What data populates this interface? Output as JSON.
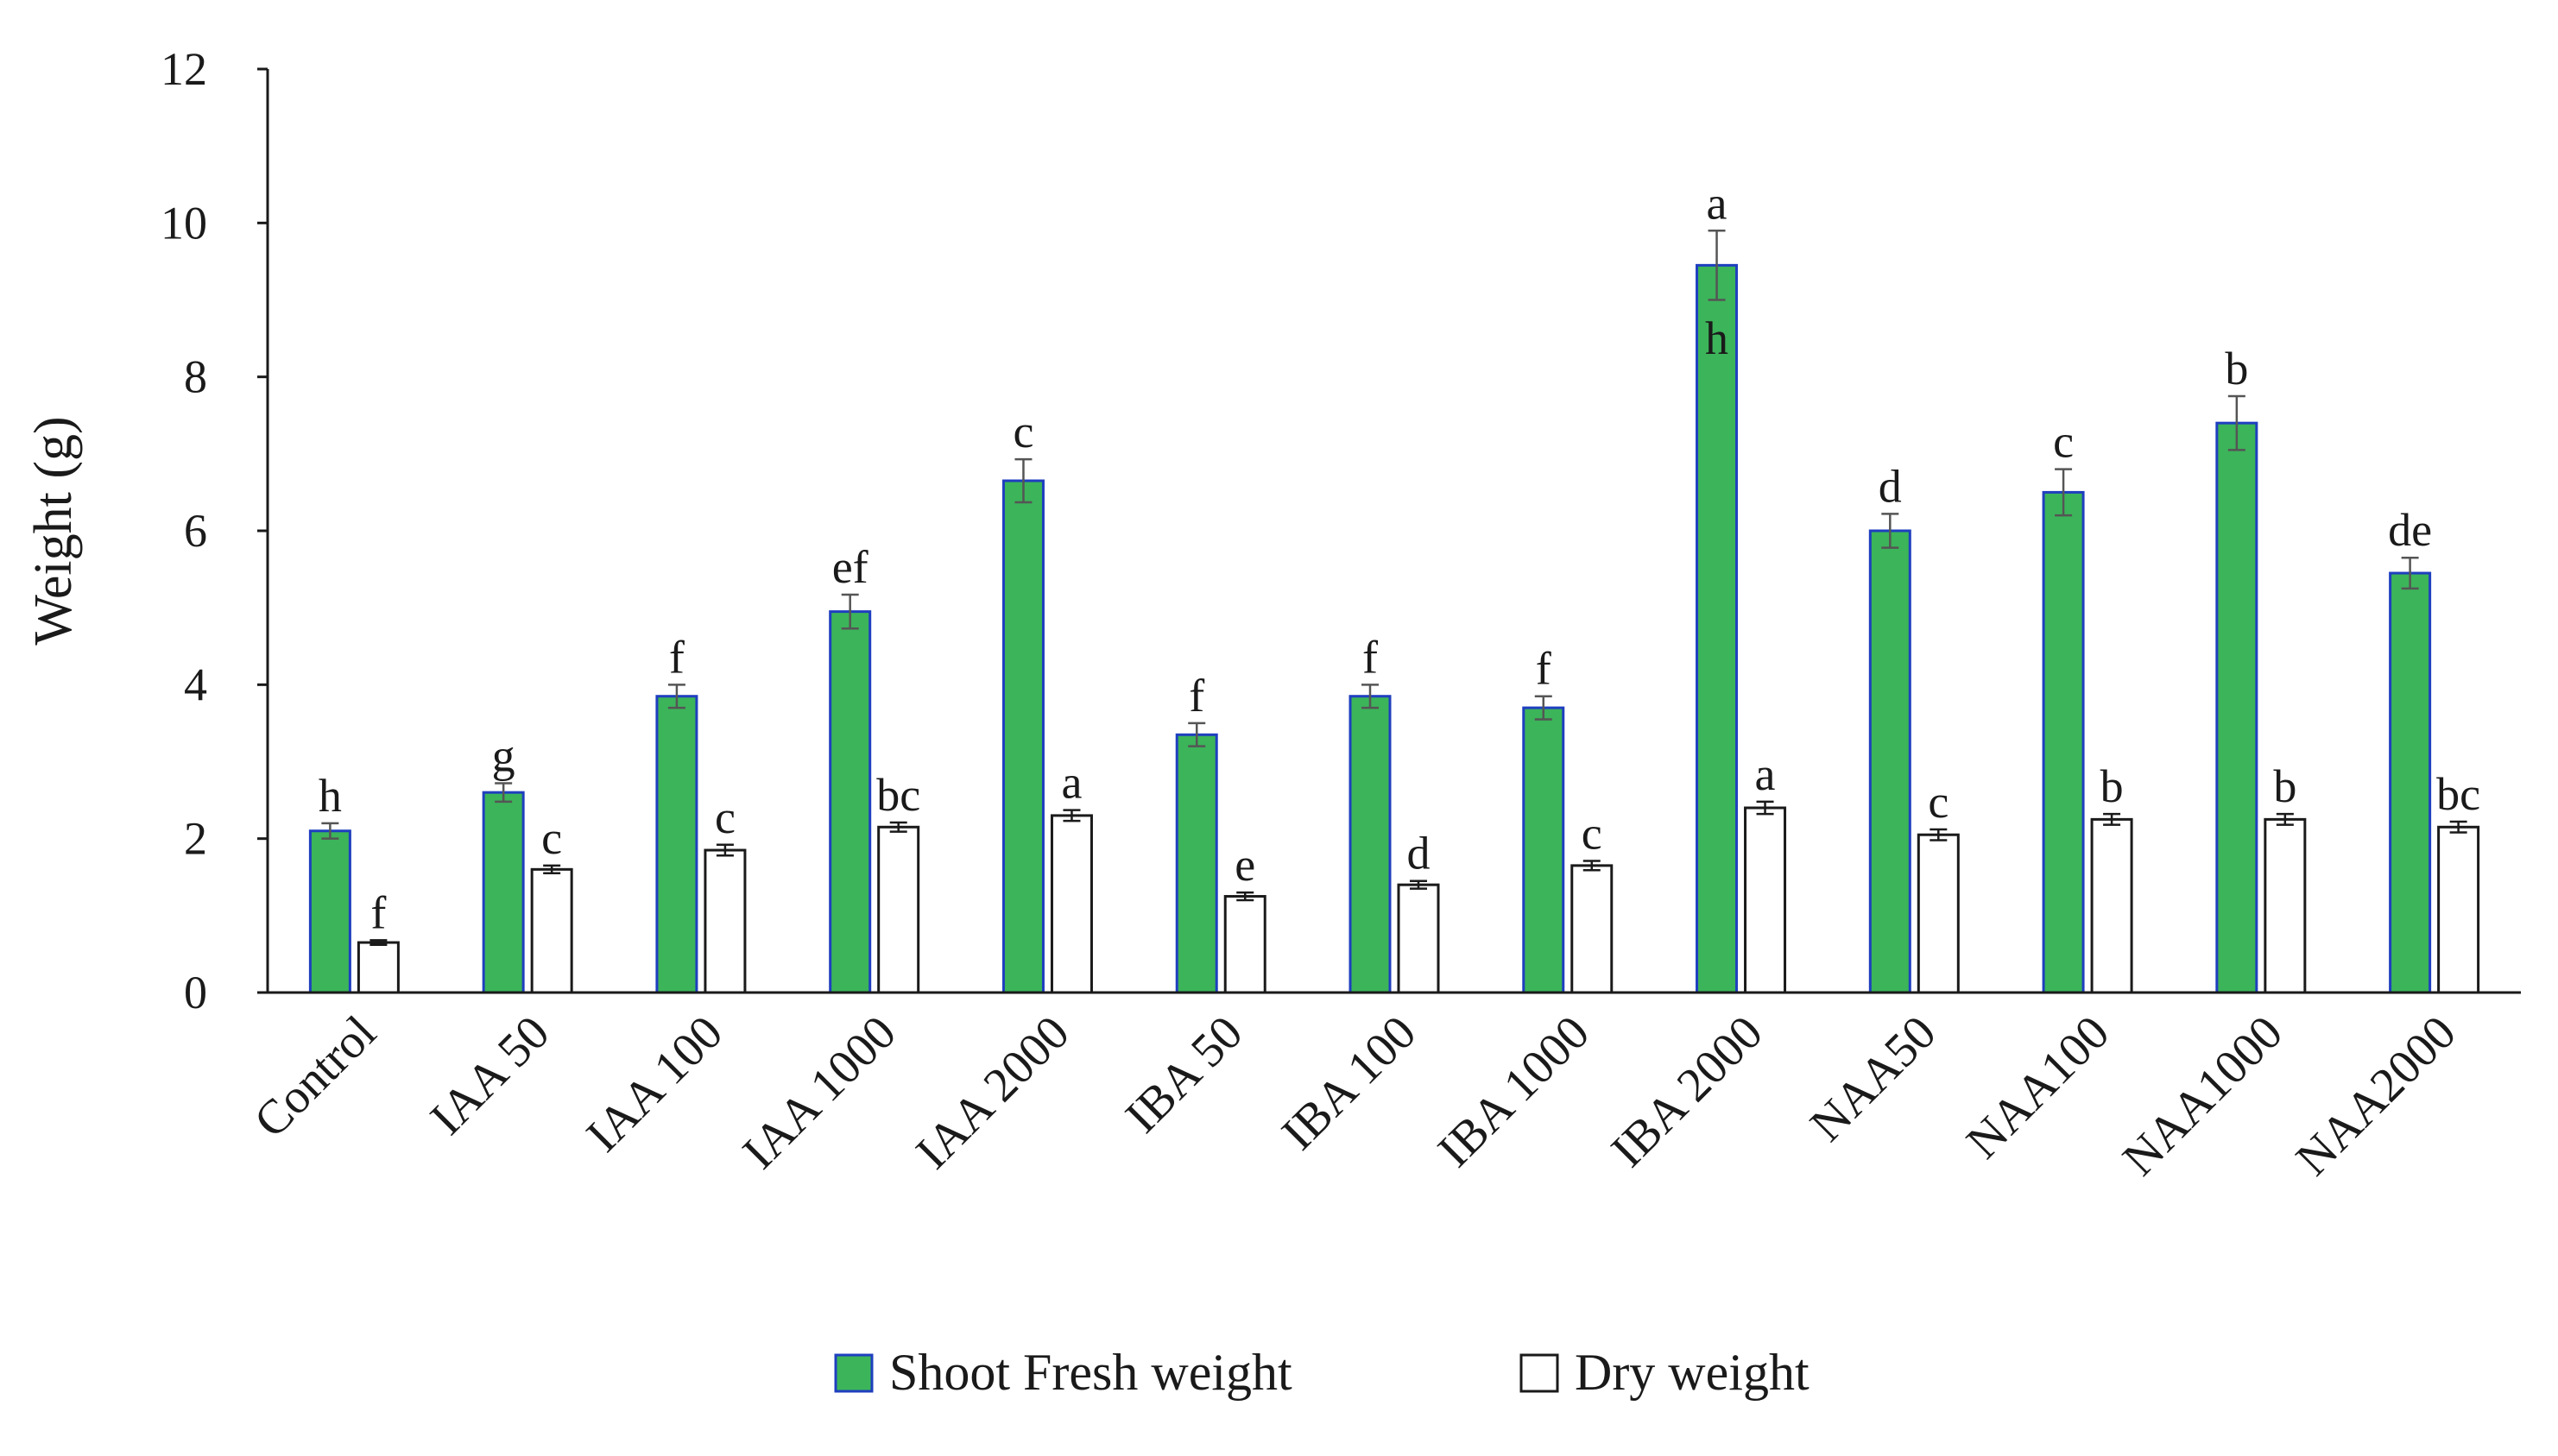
{
  "chart_data": {
    "type": "bar",
    "ylabel": "Weight  (g)",
    "xlabel": "",
    "ylim": [
      0,
      12
    ],
    "yticks": [
      "0",
      "2",
      "4",
      "6",
      "8",
      "10",
      "12"
    ],
    "grid": false,
    "legend_position": "bottom",
    "categories": [
      "Control",
      "IAA 50",
      "IAA 100",
      "IAA 1000",
      "IAA 2000",
      "IBA 50",
      "IBA 100",
      "IBA 1000",
      "IBA 2000",
      "NAA50",
      "NAA100",
      "NAA1000",
      "NAA2000"
    ],
    "series": [
      {
        "name": "Shoot Fresh weight",
        "color": "#3cb45a",
        "edge_color": "#1f3fbf",
        "values": [
          2.1,
          2.6,
          3.85,
          4.95,
          6.65,
          3.35,
          3.85,
          3.7,
          9.45,
          6.0,
          6.5,
          7.4,
          5.45
        ],
        "errors": [
          0.1,
          0.12,
          0.15,
          0.22,
          0.28,
          0.15,
          0.15,
          0.15,
          0.45,
          0.22,
          0.3,
          0.35,
          0.2
        ],
        "significance": [
          "h",
          "g",
          "f",
          "ef",
          "c",
          "f",
          "f",
          "f",
          "a",
          "d",
          "c",
          "b",
          "de"
        ]
      },
      {
        "name": "Dry weight",
        "color": "#ffffff",
        "edge_color": "#1a1a1a",
        "values": [
          0.65,
          1.6,
          1.85,
          2.15,
          2.3,
          1.25,
          1.4,
          1.65,
          2.4,
          2.05,
          2.25,
          2.25,
          2.15
        ],
        "errors": [
          0.03,
          0.05,
          0.07,
          0.06,
          0.07,
          0.05,
          0.05,
          0.06,
          0.08,
          0.07,
          0.07,
          0.07,
          0.07
        ],
        "significance": [
          "f",
          "c",
          "c",
          "bc",
          "a",
          "e",
          "d",
          "c",
          "a",
          "c",
          "b",
          "b",
          "bc"
        ]
      }
    ],
    "annotations": [
      {
        "text": "h",
        "category": "IBA 2000",
        "y": 8.5
      }
    ]
  }
}
